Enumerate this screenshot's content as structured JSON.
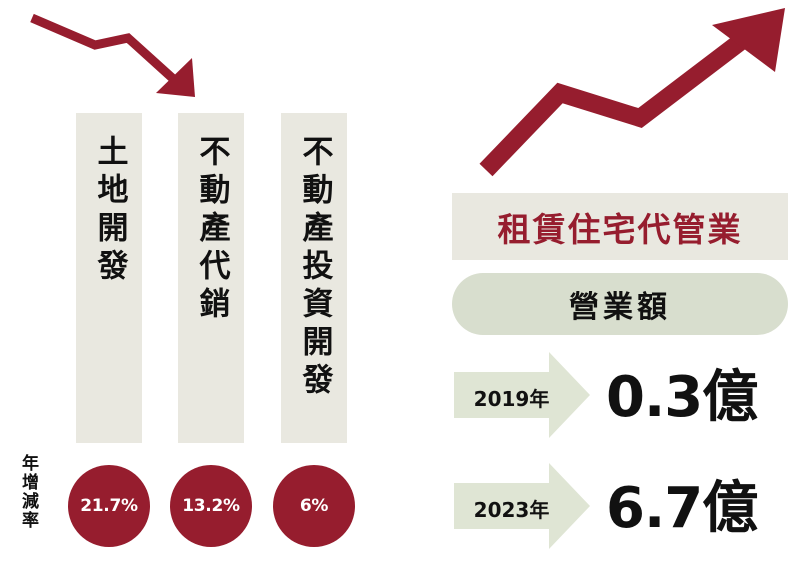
{
  "colors": {
    "accent": "#961d2e",
    "panel": "#e9e8e0",
    "pill": "#d8dece",
    "year_arrow": "#dfe5d4",
    "text": "#111111"
  },
  "columns": [
    {
      "label": "土地開發",
      "growth": "21.7%"
    },
    {
      "label": "不動產代銷",
      "growth": "13.2%"
    },
    {
      "label": "不動產投資開發",
      "growth": "6%"
    }
  ],
  "row_label": "年增減率",
  "rental": {
    "title": "租賃住宅代管業",
    "metric": "營業額",
    "years": [
      {
        "year": "2019年",
        "value": "0.3億"
      },
      {
        "year": "2023年",
        "value": "6.7億"
      }
    ]
  },
  "icons": {
    "down_arrow": "down-trend-arrow-icon",
    "up_arrow": "up-trend-arrow-icon"
  }
}
